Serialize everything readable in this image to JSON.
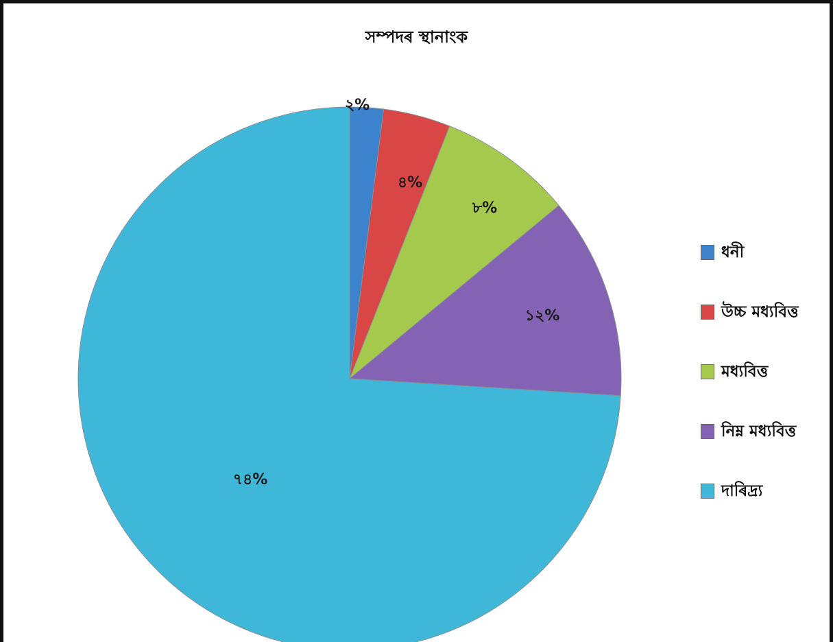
{
  "chart_data": {
    "type": "pie",
    "title": "সম্পদৰ স্থানাংক",
    "categories": [
      "ধনী",
      "উচ্চ মধ্যবিত্ত",
      "মধ্যবিত্ত",
      "নিম্ন মধ্যবিত্ত",
      "দাৰিদ্র্য"
    ],
    "values": [
      2,
      4,
      8,
      12,
      74
    ],
    "labels": [
      "২%",
      "৪%",
      "৮%",
      "১২%",
      "৭৪%"
    ],
    "colors": [
      "#3d82cc",
      "#d84646",
      "#a5c94c",
      "#8463b5",
      "#3fb7d9"
    ],
    "legend_position": "right",
    "start_angle": "top",
    "direction": "clockwise"
  }
}
